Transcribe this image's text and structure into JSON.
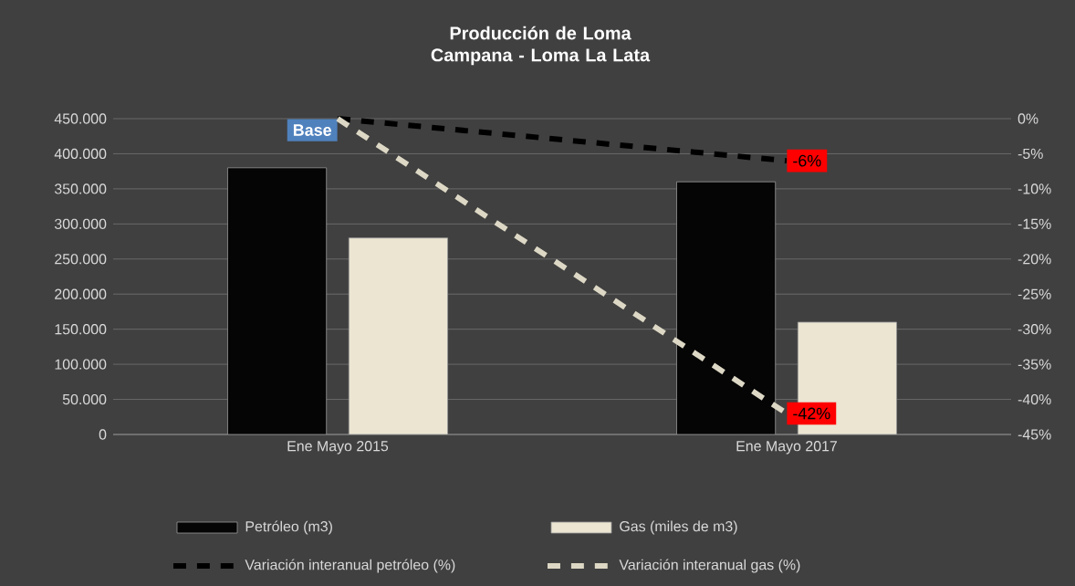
{
  "chart_data": {
    "type": "bar",
    "title": "Producción de Loma Campana - Loma La Lata",
    "categories": [
      "Ene Mayo 2015",
      "Ene Mayo 2017"
    ],
    "series": [
      {
        "name": "Petróleo (m3)",
        "color": "#050505",
        "values": [
          380000,
          360000
        ]
      },
      {
        "name": "Gas (miles de m3)",
        "color": "#ebe5d2",
        "values": [
          280000,
          160000
        ]
      },
      {
        "name": "Variación interanual petróleo (%)",
        "type": "line",
        "axis": "y2",
        "color": "#000000",
        "line_style": "dashed",
        "values": [
          0,
          -6
        ],
        "value_labels": [
          "Base",
          "-6%"
        ]
      },
      {
        "name": "Variación interanual gas (%)",
        "type": "line",
        "axis": "y2",
        "color": "#ddd8c5",
        "line_style": "dashed",
        "values": [
          0,
          -42
        ],
        "value_labels": [
          null,
          "-42%"
        ]
      }
    ],
    "ylim": [
      0,
      450000
    ],
    "yticks": [
      {
        "value": 0,
        "label": "0"
      },
      {
        "value": 50000,
        "label": "50.000"
      },
      {
        "value": 100000,
        "label": "100.000"
      },
      {
        "value": 150000,
        "label": "150.000"
      },
      {
        "value": 200000,
        "label": "200.000"
      },
      {
        "value": 250000,
        "label": "250.000"
      },
      {
        "value": 300000,
        "label": "300.000"
      },
      {
        "value": 350000,
        "label": "350.000"
      },
      {
        "value": 400000,
        "label": "400.000"
      },
      {
        "value": 450000,
        "label": "450.000"
      }
    ],
    "y2lim": [
      -45,
      0
    ],
    "y2ticks": [
      {
        "value": -45,
        "label": "-45%"
      },
      {
        "value": -40,
        "label": "-40%"
      },
      {
        "value": -35,
        "label": "-35%"
      },
      {
        "value": -30,
        "label": "-30%"
      },
      {
        "value": -25,
        "label": "-25%"
      },
      {
        "value": -20,
        "label": "-20%"
      },
      {
        "value": -15,
        "label": "-15%"
      },
      {
        "value": -10,
        "label": "-10%"
      },
      {
        "value": -5,
        "label": "-5%"
      },
      {
        "value": 0,
        "label": "0%"
      }
    ],
    "grid": "y",
    "legend": "bottom"
  }
}
